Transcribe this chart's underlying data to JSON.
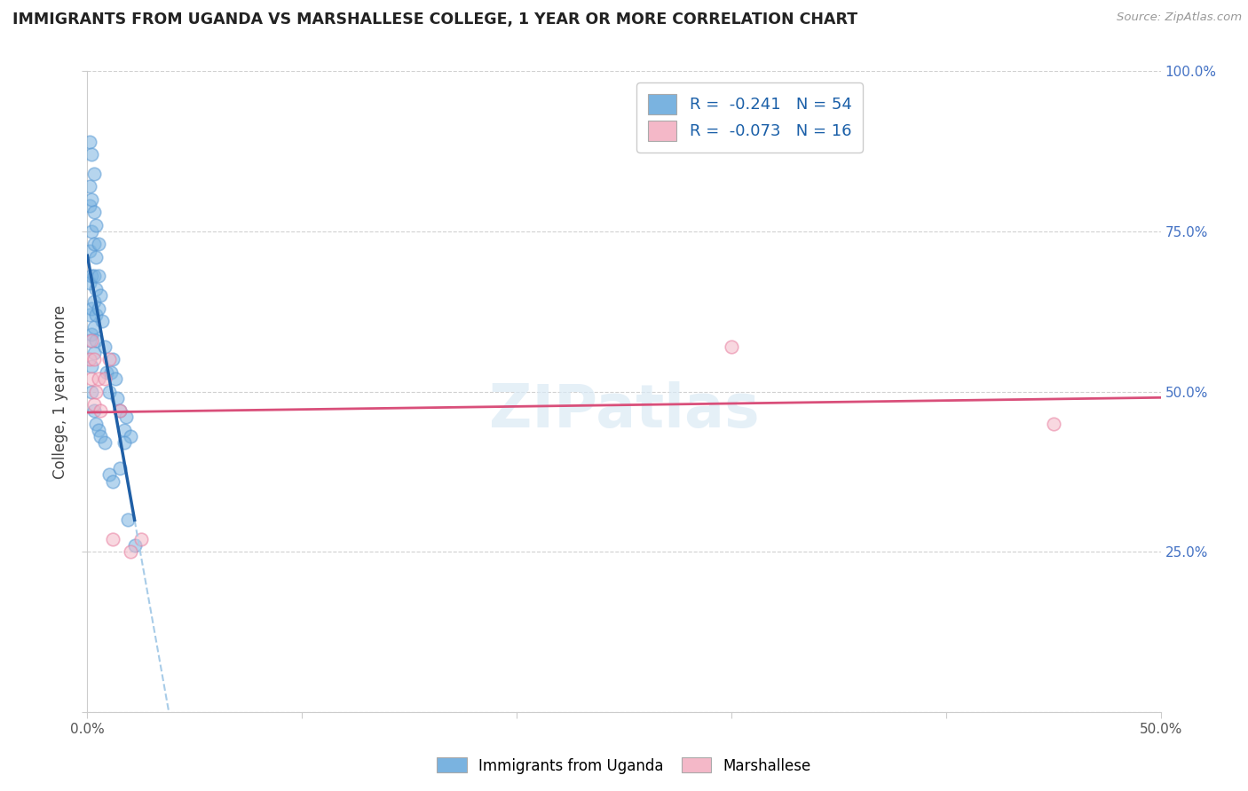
{
  "title": "IMMIGRANTS FROM UGANDA VS MARSHALLESE COLLEGE, 1 YEAR OR MORE CORRELATION CHART",
  "source": "Source: ZipAtlas.com",
  "ylabel": "College, 1 year or more",
  "xlim": [
    0.0,
    0.5
  ],
  "ylim": [
    0.0,
    1.0
  ],
  "blue_color": "#7ab3e0",
  "blue_edge": "#5b9bd5",
  "pink_color": "#f4b8c8",
  "pink_edge": "#e87fa0",
  "trend_blue_color": "#1f5fa6",
  "trend_pink_color": "#d94f7a",
  "dashed_blue_color": "#a8cce8",
  "right_label_color": "#4472c4",
  "grid_color": "#cccccc",
  "watermark_color": "#daeaf5",
  "uganda_x": [
    0.001,
    0.001,
    0.001,
    0.001,
    0.001,
    0.001,
    0.001,
    0.002,
    0.002,
    0.002,
    0.002,
    0.002,
    0.002,
    0.002,
    0.002,
    0.003,
    0.003,
    0.003,
    0.003,
    0.003,
    0.003,
    0.003,
    0.004,
    0.004,
    0.004,
    0.004,
    0.004,
    0.005,
    0.005,
    0.005,
    0.006,
    0.007,
    0.008,
    0.009,
    0.01,
    0.011,
    0.012,
    0.013,
    0.014,
    0.015,
    0.017,
    0.018,
    0.02,
    0.003,
    0.004,
    0.005,
    0.006,
    0.008,
    0.01,
    0.012,
    0.015,
    0.017,
    0.019,
    0.022
  ],
  "uganda_y": [
    0.89,
    0.82,
    0.79,
    0.72,
    0.67,
    0.62,
    0.58,
    0.87,
    0.8,
    0.75,
    0.68,
    0.63,
    0.59,
    0.54,
    0.5,
    0.84,
    0.78,
    0.73,
    0.68,
    0.64,
    0.6,
    0.56,
    0.76,
    0.71,
    0.66,
    0.62,
    0.58,
    0.73,
    0.68,
    0.63,
    0.65,
    0.61,
    0.57,
    0.53,
    0.5,
    0.53,
    0.55,
    0.52,
    0.49,
    0.47,
    0.44,
    0.46,
    0.43,
    0.47,
    0.45,
    0.44,
    0.43,
    0.42,
    0.37,
    0.36,
    0.38,
    0.42,
    0.3,
    0.26
  ],
  "marshallese_x": [
    0.001,
    0.002,
    0.002,
    0.003,
    0.003,
    0.004,
    0.005,
    0.006,
    0.008,
    0.01,
    0.012,
    0.015,
    0.02,
    0.025,
    0.3,
    0.45
  ],
  "marshallese_y": [
    0.55,
    0.58,
    0.52,
    0.55,
    0.48,
    0.5,
    0.52,
    0.47,
    0.52,
    0.55,
    0.27,
    0.47,
    0.25,
    0.27,
    0.57,
    0.45
  ],
  "xtick_positions": [
    0.0,
    0.1,
    0.2,
    0.3,
    0.4,
    0.5
  ],
  "ytick_positions": [
    0.0,
    0.25,
    0.5,
    0.75,
    1.0
  ],
  "legend1_label": "R =  -0.241   N = 54",
  "legend2_label": "R =  -0.073   N = 16",
  "bottom_label1": "Immigrants from Uganda",
  "bottom_label2": "Marshallese"
}
